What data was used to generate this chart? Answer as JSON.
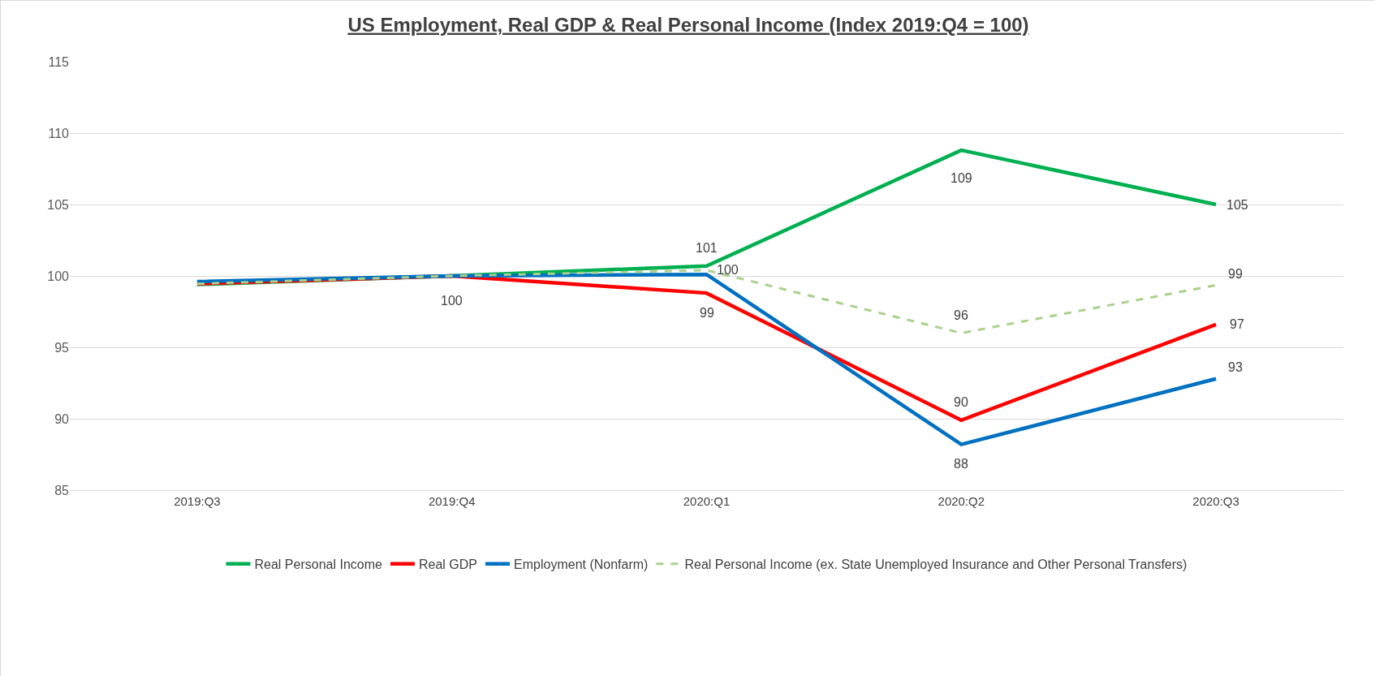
{
  "chart_data": {
    "type": "line",
    "title": "US Employment, Real GDP & Real Personal Income (Index 2019:Q4 = 100)",
    "categories": [
      "2019:Q3",
      "2019:Q4",
      "2020:Q1",
      "2020:Q2",
      "2020:Q3"
    ],
    "series": [
      {
        "name": "Real Personal Income",
        "color": "#00b050",
        "values": [
          99.4,
          100,
          100.7,
          108.8,
          105.0
        ],
        "value_labels": [
          null,
          null,
          "101",
          "109",
          "105"
        ]
      },
      {
        "name": "Real GDP",
        "color": "#ff0000",
        "values": [
          99.45,
          100,
          98.8,
          89.9,
          96.6
        ],
        "value_labels": [
          null,
          "100",
          "99",
          "90",
          "97"
        ]
      },
      {
        "name": "Employment (Nonfarm)",
        "color": "#0070c0",
        "values": [
          99.6,
          100,
          100.1,
          88.2,
          92.8
        ],
        "value_labels": [
          null,
          null,
          null,
          "88",
          "93"
        ]
      },
      {
        "name": "Real Personal Income (ex. State Unemployed Insurance and Other Personal Transfers)",
        "color": "#a9d18e",
        "line_style": "dashed",
        "values": [
          99.45,
          100,
          100.4,
          96.0,
          99.35
        ],
        "value_labels": [
          null,
          null,
          "100",
          "96",
          "99"
        ]
      }
    ],
    "ylim": [
      85,
      115
    ],
    "yticks": [
      85,
      90,
      95,
      100,
      105,
      110,
      115
    ],
    "grid": "y",
    "legend": "bottom",
    "marker": "none",
    "line_style": "solid"
  }
}
